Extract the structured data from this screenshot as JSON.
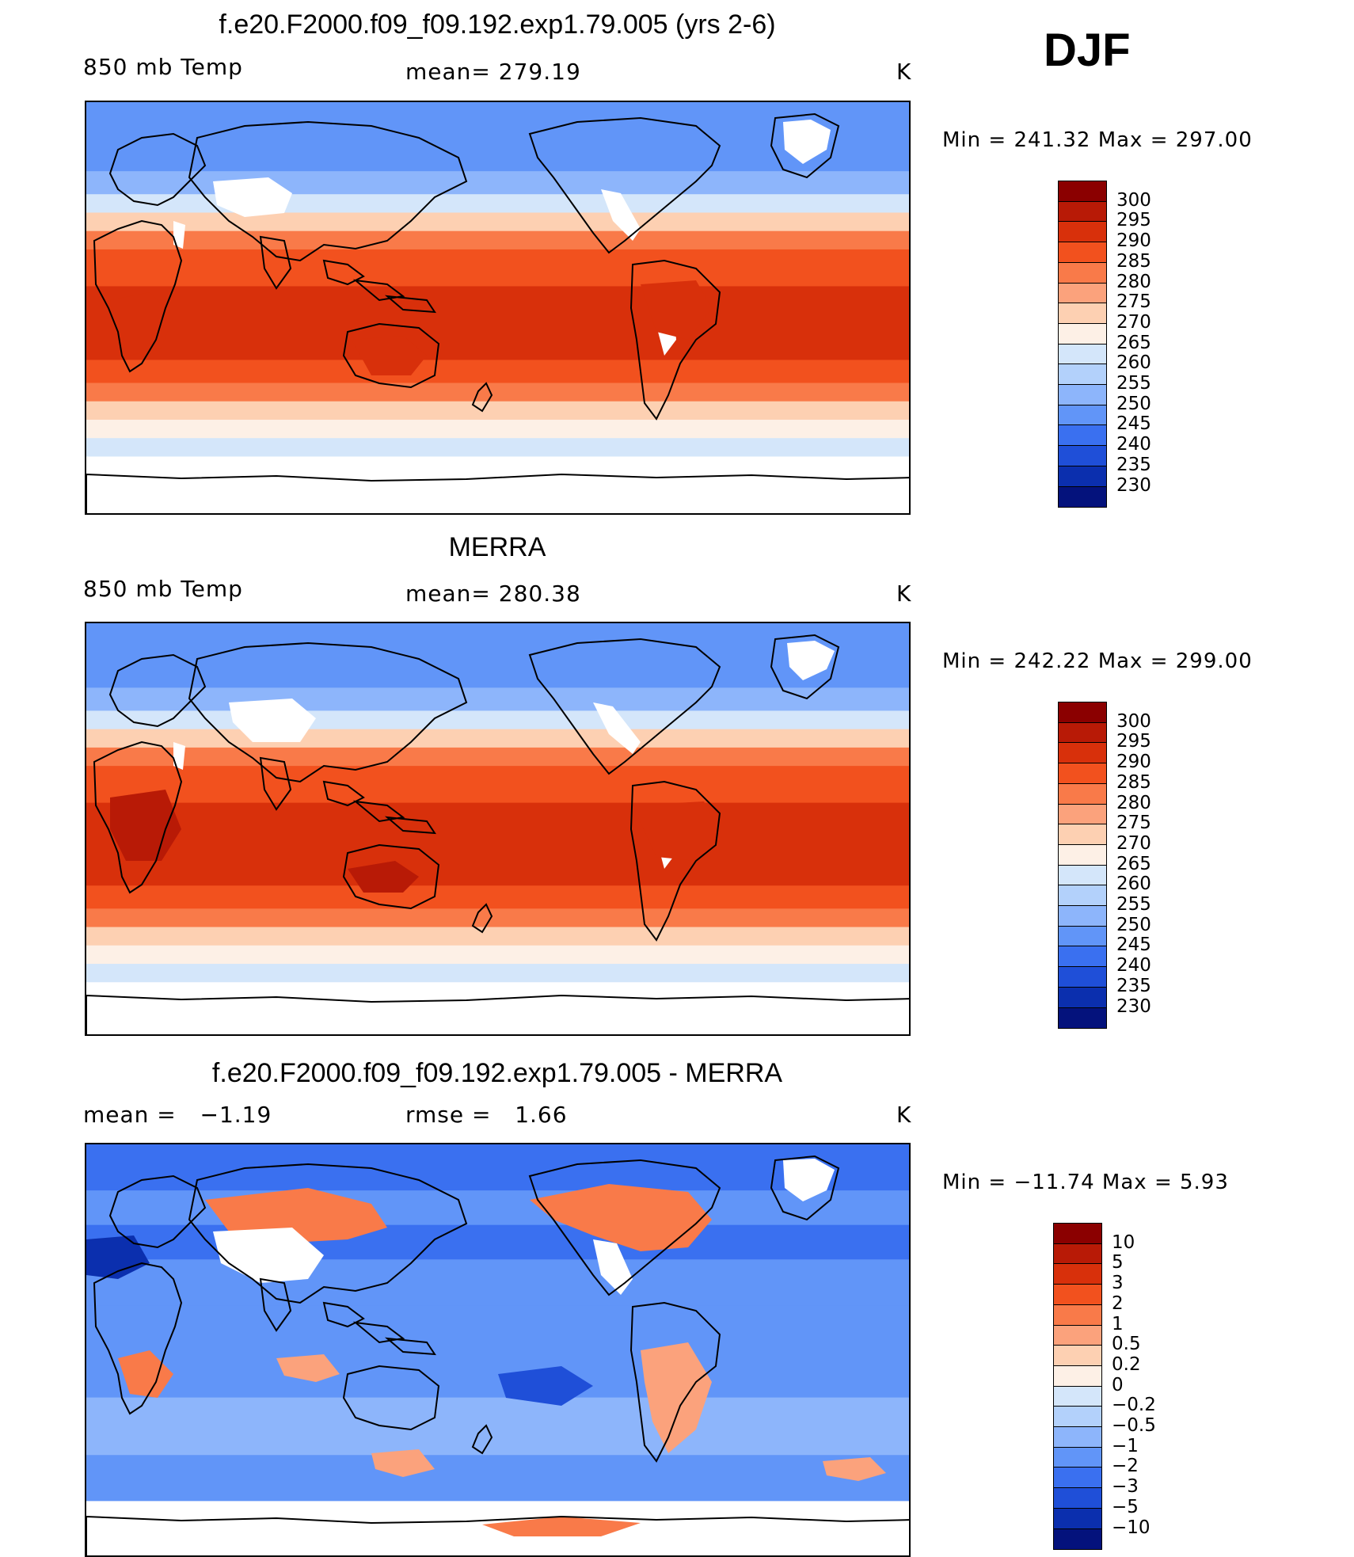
{
  "season": "DJF",
  "units": "K",
  "panels": [
    {
      "title": "f.e20.F2000.f09_f09.192.exp1.79.005 (yrs 2-6)",
      "left_label": "850 mb Temp",
      "stat_label": "mean=",
      "stat_value": "279.19",
      "units": "K",
      "minmax": "Min = 241.32 Max = 297.00",
      "colorbar": {
        "levels": [
          "300",
          "295",
          "290",
          "285",
          "280",
          "275",
          "270",
          "265",
          "260",
          "255",
          "250",
          "245",
          "240",
          "235",
          "230"
        ],
        "colors": [
          "#8b0000",
          "#b81a06",
          "#d8300b",
          "#f2511e",
          "#f97a49",
          "#fba27c",
          "#fdd0b2",
          "#fdf0e6",
          "#d4e6fa",
          "#b3d1fb",
          "#8db5fb",
          "#6195f8",
          "#3a70f0",
          "#1f4fd8",
          "#0b2fae",
          "#04127c"
        ]
      },
      "map_style": "model"
    },
    {
      "title": "MERRA",
      "left_label": "850 mb Temp",
      "stat_label": "mean=",
      "stat_value": "280.38",
      "units": "K",
      "minmax": "Min = 242.22 Max = 299.00",
      "colorbar": {
        "levels": [
          "300",
          "295",
          "290",
          "285",
          "280",
          "275",
          "270",
          "265",
          "260",
          "255",
          "250",
          "245",
          "240",
          "235",
          "230"
        ],
        "colors": [
          "#8b0000",
          "#b81a06",
          "#d8300b",
          "#f2511e",
          "#f97a49",
          "#fba27c",
          "#fdd0b2",
          "#fdf0e6",
          "#d4e6fa",
          "#b3d1fb",
          "#8db5fb",
          "#6195f8",
          "#3a70f0",
          "#1f4fd8",
          "#0b2fae",
          "#04127c"
        ]
      },
      "map_style": "obs"
    },
    {
      "title": "f.e20.F2000.f09_f09.192.exp1.79.005 - MERRA",
      "left_label": "mean =",
      "left_value": "−1.19",
      "stat_label": "rmse =",
      "stat_value": "1.66",
      "units": "K",
      "minmax": "Min = −11.74 Max =     5.93",
      "colorbar": {
        "levels": [
          "10",
          "5",
          "3",
          "2",
          "1",
          "0.5",
          "0.2",
          "0",
          "−0.2",
          "−0.5",
          "−1",
          "−2",
          "−3",
          "−5",
          "−10"
        ],
        "colors": [
          "#8b0000",
          "#b81a06",
          "#d8300b",
          "#f2511e",
          "#f97a49",
          "#fba27c",
          "#fdd0b2",
          "#fdf0e6",
          "#d4e6fa",
          "#b3d1fb",
          "#8db5fb",
          "#6195f8",
          "#3a70f0",
          "#1f4fd8",
          "#0b2fae",
          "#04127c"
        ]
      },
      "map_style": "diff"
    }
  ]
}
